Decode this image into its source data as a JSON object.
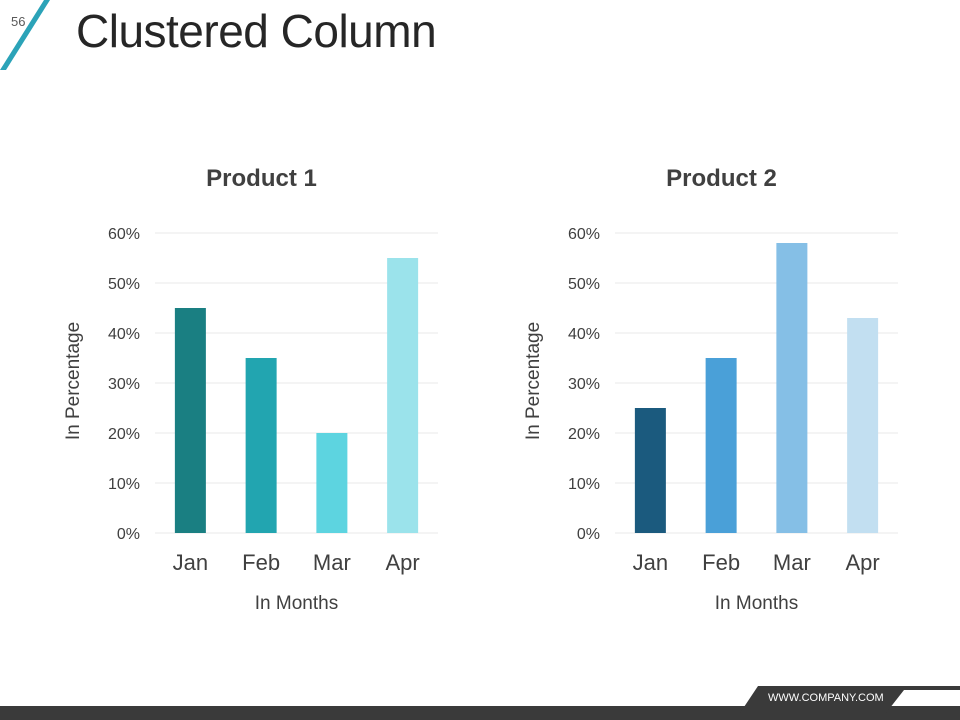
{
  "slide": {
    "number": "56",
    "title": "Clustered Column"
  },
  "footer": {
    "url": "WWW.COMPANY.COM"
  },
  "colors": {
    "accent": "#2BA3B8",
    "footer_bar": "#3A3A3A",
    "gridline": "#E8E8E8"
  },
  "chart_data": [
    {
      "type": "bar",
      "title": "Product 1",
      "xlabel": "In Months",
      "ylabel": "In Percentage",
      "categories": [
        "Jan",
        "Feb",
        "Mar",
        "Apr"
      ],
      "values": [
        45,
        35,
        20,
        55
      ],
      "colors": [
        "#1A7F82",
        "#22A5B0",
        "#5DD4E0",
        "#9BE3EB"
      ],
      "ylim": [
        0,
        60
      ],
      "yticks": [
        "0%",
        "10%",
        "20%",
        "30%",
        "40%",
        "50%",
        "60%"
      ],
      "grid": true
    },
    {
      "type": "bar",
      "title": "Product 2",
      "xlabel": "In Months",
      "ylabel": "In Percentage",
      "categories": [
        "Jan",
        "Feb",
        "Mar",
        "Apr"
      ],
      "values": [
        25,
        35,
        58,
        43
      ],
      "colors": [
        "#1B5A7E",
        "#4AA0D8",
        "#85BFE6",
        "#C2DFF1"
      ],
      "ylim": [
        0,
        60
      ],
      "yticks": [
        "0%",
        "10%",
        "20%",
        "30%",
        "40%",
        "50%",
        "60%"
      ],
      "grid": true
    }
  ]
}
